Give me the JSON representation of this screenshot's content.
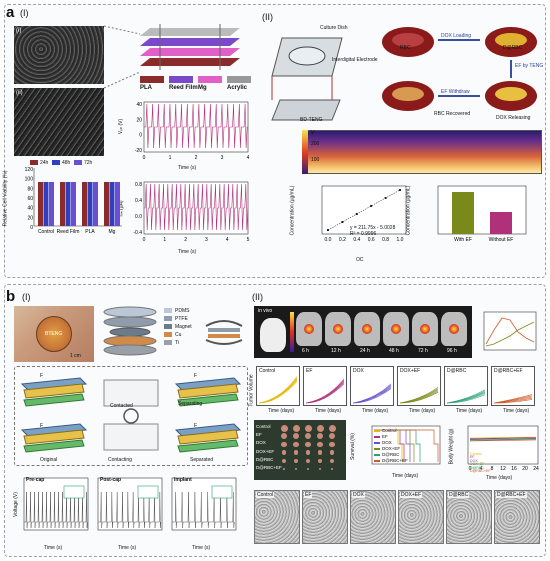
{
  "panel_a": {
    "letter": "a",
    "sub_I": "(I)",
    "sub_II": "(II)",
    "layers": [
      "PLA",
      "Reed Film",
      "Mg",
      "Acrylic"
    ],
    "layer_colors": [
      "#8b2c2c",
      "#7a48c9",
      "#e060c8",
      "#999999"
    ],
    "sem_labels": [
      "(i)",
      "(ii)"
    ],
    "voc_chart": {
      "ylabel": "Vₒₕ (V)",
      "xlabel": "Time (s)",
      "yticks": [
        "40",
        "20",
        "0",
        "-20"
      ],
      "xticks": [
        "0",
        "1",
        "2",
        "3",
        "4"
      ]
    },
    "isc_chart": {
      "ylabel": "Iₛₕ (μA)",
      "xlabel": "Time (s)",
      "yticks": [
        "0.8",
        "0.4",
        "0.0",
        "-0.4"
      ],
      "xticks": [
        "0",
        "1",
        "2",
        "3",
        "4",
        "5"
      ]
    },
    "viability_chart": {
      "ylabel": "Relative Cell Viability (%)",
      "yticks": [
        "120",
        "100",
        "80",
        "60",
        "40",
        "20",
        "0"
      ],
      "legend": [
        "24h",
        "48h",
        "72h"
      ],
      "legend_colors": [
        "#8b2c2c",
        "#2f3fbf",
        "#6a4fd1"
      ],
      "groups": [
        "Control",
        "Reed Film",
        "PLA",
        "Mg"
      ]
    },
    "diagram_labels": {
      "culture_dish": "Culture Dish",
      "electrode": "Interdigital Electrode",
      "teng": "BD-TENG"
    },
    "rbc_labels": [
      "RBC",
      "DOX Loading",
      "D@RBC",
      "EF by TENG",
      "EF Withdraw",
      "RBC Recovered",
      "DOX Releasing"
    ],
    "field_ticks": [
      "V",
      "200",
      "100"
    ],
    "conc_chart": {
      "ylabel": "Concentration (μg/mL)",
      "xlabel": "OC",
      "equation": "y = 211.75x - 5.0028",
      "r2": "R² = 0.9996",
      "xticks": [
        "0.0",
        "0.2",
        "0.4",
        "0.6",
        "0.8",
        "1.0"
      ]
    },
    "ef_chart": {
      "ylabel": "Concentration (μg/mL)",
      "categories": [
        "With EF",
        "Without EF"
      ],
      "colors": [
        "#7a8a1a",
        "#b0307a"
      ]
    }
  },
  "panel_b": {
    "letter": "b",
    "sub_I": "(I)",
    "sub_II": "(II)",
    "device_label": "BTENG",
    "scale": "1 cm",
    "materials": [
      "PDMS",
      "PTFE",
      "Magnet",
      "Cu",
      "Ti"
    ],
    "material_colors": [
      "#b9c7d6",
      "#8e9cab",
      "#6a7b8b",
      "#d08a4a",
      "#9aa0a8"
    ],
    "states": [
      "Contacted",
      "Separating",
      "Original",
      "Contacting",
      "Separated"
    ],
    "force_labels": [
      "F",
      "F",
      "F",
      "F",
      "F",
      "F",
      "F"
    ],
    "voltage_panels": [
      "Pre-cap",
      "Post-cap",
      "Implant"
    ],
    "voltage_ylabel": "Voltage (V)",
    "voltage_xlabel": "Time (s)",
    "invivo_label": "in vivo",
    "invivo_times": [
      "0 h",
      "6 h",
      "12 h",
      "24 h",
      "48 h",
      "72 h",
      "96 h"
    ],
    "groups": [
      "Control",
      "EF",
      "DOX",
      "DOX+EF",
      "D@RBC",
      "D@RBC+EF"
    ],
    "group_colors": [
      "#e6b800",
      "#b0307a",
      "#6a4fd1",
      "#7a8a1a",
      "#2aa07a",
      "#d05a28"
    ],
    "tumor_ylabel": "Tumor Volume",
    "time_label": "Time (days)",
    "survival_ylabel": "Survival (%)",
    "weight_ylabel": "Body Weight (g)",
    "weight_xticks": [
      "0",
      "4",
      "8",
      "12",
      "16",
      "20",
      "24"
    ],
    "histology": [
      "Control",
      "EF",
      "DOX",
      "DOX+EF",
      "D@RBC",
      "D@RBC+EF"
    ]
  }
}
